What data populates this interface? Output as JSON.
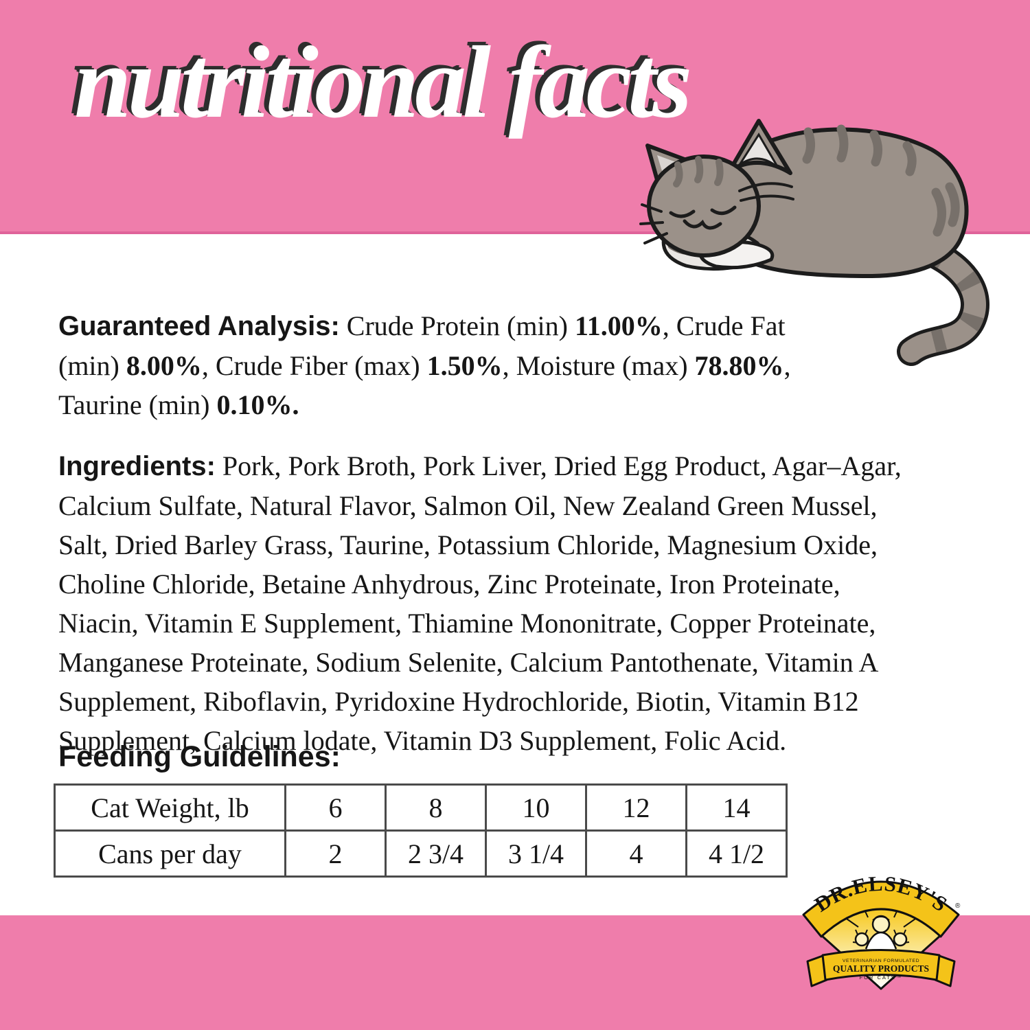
{
  "header": {
    "title": "nutritional facts"
  },
  "colors": {
    "band_pink": "#ef7dab",
    "band_pink_edge": "#e0639a",
    "logo_yellow": "#f4c319",
    "text_black": "#161616",
    "table_border_gray": "#4a4a4a",
    "cat_gray": "#9b9189",
    "cat_stripe_gray": "#77706a"
  },
  "icons": {
    "cat": "sleeping-tabby-cat-illustration",
    "logo": "dr-elseys-badge"
  },
  "guaranteed_analysis": {
    "runs": [
      {
        "t": "Guaranteed Analysis:",
        "h": true
      },
      {
        "t": " Crude Protein (min) "
      },
      {
        "t": "11.00%",
        "b": true
      },
      {
        "t": ", Crude Fat\n(min) "
      },
      {
        "t": "8.00%",
        "b": true
      },
      {
        "t": ", Crude Fiber (max) "
      },
      {
        "t": "1.50%",
        "b": true
      },
      {
        "t": ", Moisture (max) "
      },
      {
        "t": "78.80%",
        "b": true
      },
      {
        "t": ",\nTaurine (min) "
      },
      {
        "t": "0.10%.",
        "b": true
      }
    ]
  },
  "ingredients": {
    "runs": [
      {
        "t": "Ingredients:",
        "h": true
      },
      {
        "t": " Pork, Pork Broth, Pork Liver, Dried Egg Product, Agar–Agar,\nCalcium Sulfate, Natural Flavor, Salmon Oil, New Zealand Green Mussel,\nSalt, Dried Barley Grass, Taurine, Potassium Chloride, Magnesium Oxide,\nCholine Chloride, Betaine Anhydrous, Zinc Proteinate, Iron Proteinate,\nNiacin, Vitamin E Supplement, Thiamine Mononitrate, Copper Proteinate,\nManganese Proteinate, Sodium Selenite, Calcium Pantothenate, Vitamin A\nSupplement, Riboflavin, Pyridoxine Hydrochloride, Biotin, Vitamin B12\nSupplement, Calcium lodate, Vitamin D3 Supplement, Folic Acid."
      }
    ]
  },
  "feeding": {
    "heading": "Feeding Guidelines:",
    "table": {
      "rows": [
        [
          "Cat Weight, lb",
          "6",
          "8",
          "10",
          "12",
          "14"
        ],
        [
          "Cans per day",
          "2",
          "2 3/4",
          "3 1/4",
          "4",
          "4 1/2"
        ]
      ]
    }
  },
  "logo": {
    "brand": "DR.ELSEY'S",
    "registered": "®",
    "line1": "VETERINARIAN FORMULATED",
    "line2": "QUALITY PRODUCTS",
    "line3": "FOR CATS™"
  }
}
